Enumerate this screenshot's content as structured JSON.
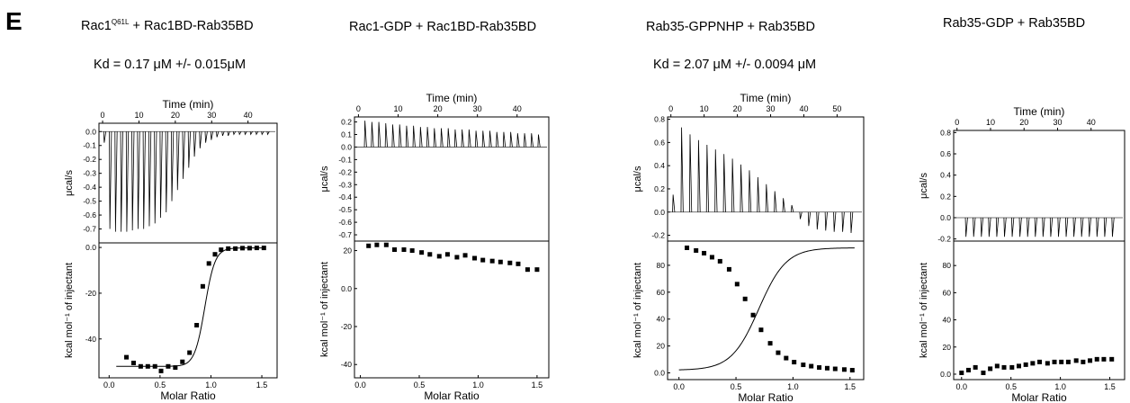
{
  "panel_letter": "E",
  "chart_data": [
    {
      "type": "line",
      "title_main": "Rac1",
      "title_sup": "Q61L",
      "title_rest": " + Rac1BD-Rab35BD",
      "kd": "Kd = 0.17 μM +/- 0.015μM",
      "top": {
        "xlabel": "Time (min)",
        "ylabel": "μcal/s",
        "xlim": [
          -1,
          48
        ],
        "ylim": [
          -0.8,
          0.06
        ],
        "xticks": [
          "0",
          "10",
          "20",
          "30",
          "40"
        ],
        "xtick_values": [
          0,
          10,
          20,
          30,
          40
        ],
        "yticks": [
          "0.0",
          "-0.1",
          "-0.2",
          "-0.3",
          "-0.4",
          "-0.5",
          "-0.6",
          "-0.7"
        ],
        "ytick_values": [
          0,
          -0.1,
          -0.2,
          -0.3,
          -0.4,
          -0.5,
          -0.6,
          -0.7
        ],
        "injection_start": 0.3,
        "injection_interval": 1.55,
        "peaks": [
          -0.08,
          -0.7,
          -0.72,
          -0.72,
          -0.72,
          -0.71,
          -0.7,
          -0.7,
          -0.68,
          -0.66,
          -0.62,
          -0.58,
          -0.5,
          -0.42,
          -0.34,
          -0.26,
          -0.18,
          -0.12,
          -0.08,
          -0.06,
          -0.04,
          -0.03,
          -0.03,
          -0.02,
          -0.02,
          -0.02,
          -0.02,
          -0.02,
          -0.02,
          -0.02
        ]
      },
      "bottom": {
        "xlabel": "Molar Ratio",
        "ylabel": "kcal mol⁻¹ of injectant",
        "xlim": [
          -0.1,
          1.65
        ],
        "ylim": [
          -57,
          2
        ],
        "xticks": [
          "0.0",
          "0.5",
          "1.0",
          "1.5"
        ],
        "xtick_values": [
          0,
          0.5,
          1.0,
          1.5
        ],
        "yticks": [
          "0.0",
          "-20",
          "-40"
        ],
        "ytick_values": [
          0,
          -20,
          -40
        ],
        "x": [
          0.17,
          0.24,
          0.31,
          0.38,
          0.45,
          0.51,
          0.58,
          0.65,
          0.72,
          0.79,
          0.86,
          0.92,
          0.98,
          1.04,
          1.1,
          1.17,
          1.24,
          1.31,
          1.38,
          1.45,
          1.52
        ],
        "y": [
          -48,
          -50.5,
          -52,
          -52,
          -52,
          -54,
          -52,
          -52.5,
          -50,
          -46,
          -34,
          -17,
          -7,
          -3,
          -1,
          -0.5,
          -0.5,
          -0.3,
          -0.3,
          -0.2,
          -0.2
        ],
        "fit": {
          "kind": "sigmoid",
          "top": -0.2,
          "bottom": -52,
          "mid": 0.94,
          "k": 0.05
        }
      }
    },
    {
      "type": "line",
      "title_main": "Rac1-GDP + Rac1BD-Rab35BD",
      "title_sup": "",
      "title_rest": "",
      "kd": "",
      "top": {
        "xlabel": "Time (min)",
        "ylabel": "μcal/s",
        "xlim": [
          -1,
          48
        ],
        "ylim": [
          -0.75,
          0.24
        ],
        "xticks": [
          "0",
          "10",
          "20",
          "30",
          "40"
        ],
        "xtick_values": [
          0,
          10,
          20,
          30,
          40
        ],
        "yticks": [
          "0.2",
          "0.1",
          "0.0",
          "-0.1",
          "-0.2",
          "-0.3",
          "-0.4",
          "-0.5",
          "-0.6",
          "-0.7"
        ],
        "ytick_values": [
          0.2,
          0.1,
          0,
          -0.1,
          -0.2,
          -0.3,
          -0.4,
          -0.5,
          -0.6,
          -0.7
        ],
        "injection_start": 1.5,
        "injection_interval": 1.75,
        "peaks": [
          0.21,
          0.2,
          0.2,
          0.19,
          0.18,
          0.18,
          0.17,
          0.17,
          0.16,
          0.16,
          0.15,
          0.15,
          0.15,
          0.14,
          0.14,
          0.14,
          0.13,
          0.13,
          0.13,
          0.12,
          0.12,
          0.12,
          0.11,
          0.11,
          0.11,
          0.1
        ]
      },
      "bottom": {
        "xlabel": "Molar Ratio",
        "ylabel": "kcal mol⁻¹ of injectant",
        "xlim": [
          -0.05,
          1.6
        ],
        "ylim": [
          -47,
          25
        ],
        "xticks": [
          "0.0",
          "0.5",
          "1.0",
          "1.5"
        ],
        "xtick_values": [
          0,
          0.5,
          1.0,
          1.5
        ],
        "yticks": [
          "20",
          "0.0",
          "-20",
          "-40"
        ],
        "ytick_values": [
          20,
          0,
          -20,
          -40
        ],
        "x": [
          0.07,
          0.14,
          0.22,
          0.29,
          0.37,
          0.44,
          0.52,
          0.59,
          0.67,
          0.74,
          0.82,
          0.89,
          0.97,
          1.04,
          1.12,
          1.19,
          1.27,
          1.34,
          1.42,
          1.5
        ],
        "y": [
          22.5,
          23,
          23,
          20.5,
          20.5,
          20,
          19,
          18,
          17,
          18,
          16.5,
          17.5,
          16,
          15,
          14.5,
          14,
          13.5,
          13,
          10,
          10
        ]
      }
    },
    {
      "type": "line",
      "title_main": "Rab35-GPPNHP + Rab35BD",
      "title_sup": "",
      "title_rest": "",
      "kd": "Kd = 2.07 μM  +/- 0.0094 μM",
      "top": {
        "xlabel": "Time (min)",
        "ylabel": "μcal/s",
        "xlim": [
          -1,
          58
        ],
        "ylim": [
          -0.25,
          0.82
        ],
        "xticks": [
          "0",
          "10",
          "20",
          "30",
          "40",
          "50"
        ],
        "xtick_values": [
          0,
          10,
          20,
          30,
          40,
          50
        ],
        "yticks": [
          "0.8",
          "0.6",
          "0.4",
          "0.2",
          "0.0",
          "-0.2"
        ],
        "ytick_values": [
          0.8,
          0.6,
          0.4,
          0.2,
          0,
          -0.2
        ],
        "injection_start": 0.5,
        "injection_interval": 2.55,
        "peaks": [
          0.15,
          0.73,
          0.67,
          0.62,
          0.58,
          0.54,
          0.5,
          0.46,
          0.41,
          0.36,
          0.3,
          0.24,
          0.18,
          0.12,
          0.06,
          -0.06,
          -0.12,
          -0.15,
          -0.16,
          -0.17,
          -0.17,
          -0.18
        ]
      },
      "bottom": {
        "xlabel": "Molar Ratio",
        "ylabel": "kcal mol⁻¹ of injectant",
        "xlim": [
          -0.1,
          1.62
        ],
        "ylim": [
          -5,
          98
        ],
        "xticks": [
          "0.0",
          "0.5",
          "1.0",
          "1.5"
        ],
        "xtick_values": [
          0,
          0.5,
          1.0,
          1.5
        ],
        "yticks": [
          "80",
          "60",
          "40",
          "20",
          "0.0"
        ],
        "ytick_values": [
          80,
          60,
          40,
          20,
          0
        ],
        "x": [
          0.07,
          0.15,
          0.22,
          0.29,
          0.36,
          0.44,
          0.51,
          0.58,
          0.65,
          0.72,
          0.8,
          0.87,
          0.94,
          1.01,
          1.09,
          1.16,
          1.23,
          1.3,
          1.37,
          1.45,
          1.52
        ],
        "y": [
          93,
          91,
          89,
          86,
          83,
          77,
          66,
          55,
          43,
          32,
          22,
          15,
          11,
          8,
          6,
          5,
          4,
          3.5,
          3,
          2.5,
          2
        ],
        "fit": {
          "kind": "sigmoid",
          "top": 93,
          "bottom": 2,
          "mid": 0.7,
          "k": 0.12
        }
      }
    },
    {
      "type": "line",
      "title_main": "Rab35-GDP + Rab35BD",
      "title_sup": "",
      "title_rest": "",
      "kd": "",
      "top": {
        "xlabel": "Time (min)",
        "ylabel": "μcal/s",
        "xlim": [
          -1,
          50
        ],
        "ylim": [
          -0.22,
          0.82
        ],
        "xticks": [
          "0",
          "10",
          "20",
          "30",
          "40"
        ],
        "xtick_values": [
          0,
          10,
          20,
          30,
          40
        ],
        "yticks": [
          "0.8",
          "0.6",
          "0.4",
          "0.2",
          "0.0",
          "-0.2"
        ],
        "ytick_values": [
          0.8,
          0.6,
          0.4,
          0.2,
          0,
          -0.2
        ],
        "injection_start": 2.5,
        "injection_interval": 2.3,
        "peaks": [
          -0.18,
          -0.18,
          -0.18,
          -0.18,
          -0.18,
          -0.18,
          -0.18,
          -0.18,
          -0.18,
          -0.18,
          -0.18,
          -0.18,
          -0.18,
          -0.18,
          -0.18,
          -0.18,
          -0.18,
          -0.18,
          -0.18,
          -0.18
        ]
      },
      "bottom": {
        "xlabel": "Molar Ratio",
        "ylabel": "kcal mol⁻¹ of injectant",
        "xlim": [
          -0.08,
          1.65
        ],
        "ylim": [
          -4,
          98
        ],
        "xticks": [
          "0.0",
          "0.5",
          "1.0",
          "1.5"
        ],
        "xtick_values": [
          0,
          0.5,
          1.0,
          1.5
        ],
        "yticks": [
          "80",
          "60",
          "40",
          "20",
          "0.0"
        ],
        "ytick_values": [
          80,
          60,
          40,
          20,
          0
        ],
        "x": [
          0.0,
          0.07,
          0.14,
          0.22,
          0.29,
          0.36,
          0.43,
          0.51,
          0.58,
          0.65,
          0.72,
          0.79,
          0.87,
          0.94,
          1.01,
          1.08,
          1.16,
          1.23,
          1.3,
          1.37,
          1.44,
          1.52
        ],
        "y": [
          1,
          3,
          5,
          1,
          4,
          6,
          5,
          5,
          6,
          7,
          8,
          9,
          8,
          9,
          9,
          9,
          10,
          9,
          10,
          11,
          11,
          11
        ]
      }
    }
  ]
}
